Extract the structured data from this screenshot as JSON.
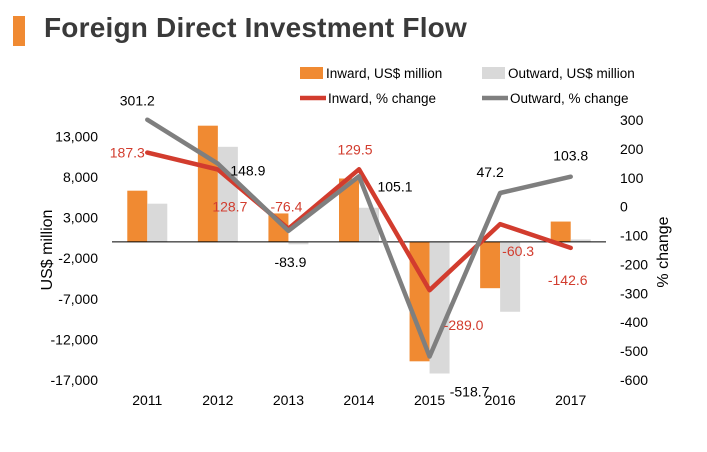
{
  "title": "Foreign Direct Investment Flow",
  "colors": {
    "accent": "#f08a32",
    "inward_bar": "#f08a32",
    "outward_bar": "#d9d9d9",
    "inward_line": "#d23c2e",
    "outward_line": "#7f7f7f",
    "inward_label": "#d23c2e",
    "outward_label": "#000000",
    "axis_text": "#000000"
  },
  "chart_data": {
    "type": "bar",
    "categories": [
      "2011",
      "2012",
      "2013",
      "2014",
      "2015",
      "2016",
      "2017"
    ],
    "ylabel": "US$ million",
    "y2label": "% change",
    "ylim": [
      -17000,
      15000
    ],
    "y_ticks": [
      13000,
      8000,
      3000,
      -2000,
      -7000,
      -12000,
      -17000
    ],
    "y_tick_labels": [
      "13,000",
      "8,000",
      "3,000",
      "-2,000",
      "-7,000",
      "-12,000",
      "-17,000"
    ],
    "y2lim": [
      -600,
      300
    ],
    "y2_ticks": [
      300,
      200,
      100,
      0,
      -100,
      -200,
      -300,
      -400,
      -500,
      -600
    ],
    "y2_tick_labels": [
      "300",
      "200",
      "100",
      "0",
      "-100",
      "-200",
      "-300",
      "-400",
      "-500",
      "-600"
    ],
    "legend_position": "top-right",
    "grid": false,
    "bar_series": [
      {
        "name": "Inward, US$ million",
        "values": [
          6300,
          14300,
          3500,
          7800,
          -14700,
          -5700,
          2500
        ]
      },
      {
        "name": "Outward, US$ million",
        "values": [
          4700,
          11700,
          -300,
          4200,
          -16200,
          -8600,
          300
        ]
      }
    ],
    "line_series": [
      {
        "name": "Inward, % change",
        "values": [
          187.3,
          128.7,
          -76.4,
          129.5,
          -289.0,
          -60.3,
          -142.6
        ],
        "labels": [
          "187.3",
          "128.7",
          "-76.4",
          "129.5",
          "-289.0",
          "-60.3",
          "-142.6"
        ]
      },
      {
        "name": "Outward, % change",
        "values": [
          301.2,
          148.9,
          -83.9,
          105.1,
          -518.7,
          47.2,
          103.8
        ],
        "labels": [
          "301.2",
          "148.9",
          "-83.9",
          "105.1",
          "-518.7",
          "47.2",
          "103.8"
        ]
      }
    ]
  }
}
